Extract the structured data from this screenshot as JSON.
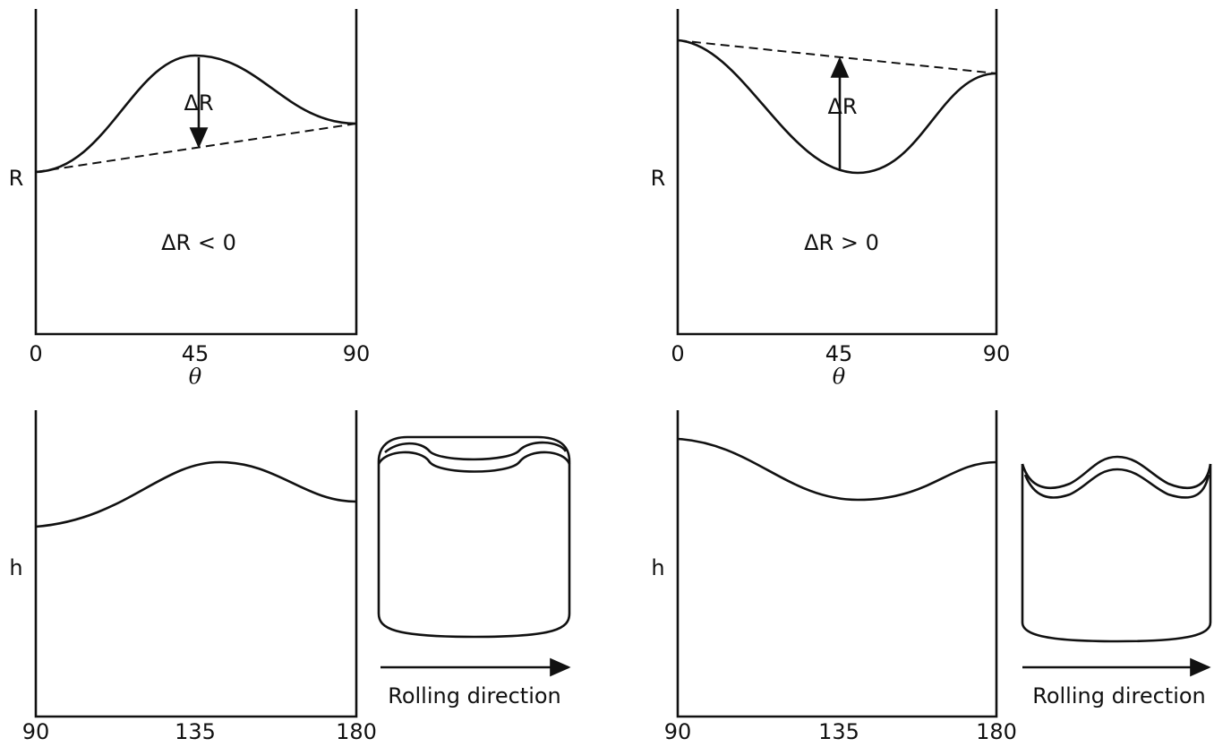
{
  "panels": [
    {
      "y_label": "R",
      "x_label": "θ",
      "x_ticks": [
        "0",
        "45",
        "90"
      ],
      "delta_label": "ΔR",
      "condition": "ΔR < 0"
    },
    {
      "y_label": "R",
      "x_label": "θ",
      "x_ticks": [
        "0",
        "45",
        "90"
      ],
      "delta_label": "ΔR",
      "condition": "ΔR > 0"
    },
    {
      "y_label": "h",
      "x_ticks": [
        "90",
        "135",
        "180"
      ],
      "direction_label": "Rolling direction"
    },
    {
      "y_label": "h",
      "x_ticks": [
        "90",
        "135",
        "180"
      ],
      "direction_label": "Rolling direction"
    }
  ]
}
